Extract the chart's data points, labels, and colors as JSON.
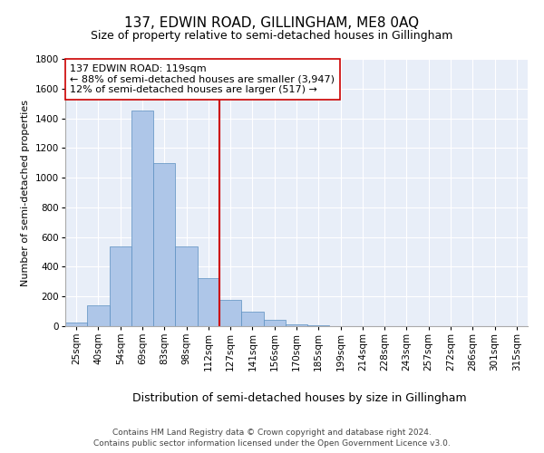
{
  "title": "137, EDWIN ROAD, GILLINGHAM, ME8 0AQ",
  "subtitle": "Size of property relative to semi-detached houses in Gillingham",
  "xlabel": "Distribution of semi-detached houses by size in Gillingham",
  "ylabel": "Number of semi-detached properties",
  "categories": [
    "25sqm",
    "40sqm",
    "54sqm",
    "69sqm",
    "83sqm",
    "98sqm",
    "112sqm",
    "127sqm",
    "141sqm",
    "156sqm",
    "170sqm",
    "185sqm",
    "199sqm",
    "214sqm",
    "228sqm",
    "243sqm",
    "257sqm",
    "272sqm",
    "286sqm",
    "301sqm",
    "315sqm"
  ],
  "values": [
    25,
    140,
    540,
    1450,
    1100,
    540,
    325,
    175,
    100,
    45,
    10,
    5,
    2,
    1,
    0,
    0,
    0,
    0,
    0,
    0,
    0
  ],
  "bar_color": "#aec6e8",
  "bar_edge_color": "#5a8fc0",
  "vline_index": 7,
  "vline_color": "#cc0000",
  "annotation_text": "137 EDWIN ROAD: 119sqm\n← 88% of semi-detached houses are smaller (3,947)\n12% of semi-detached houses are larger (517) →",
  "annotation_box_color": "#ffffff",
  "annotation_box_edge": "#cc0000",
  "ylim": [
    0,
    1800
  ],
  "yticks": [
    0,
    200,
    400,
    600,
    800,
    1000,
    1200,
    1400,
    1600,
    1800
  ],
  "background_color": "#e8eef8",
  "footer1": "Contains HM Land Registry data © Crown copyright and database right 2024.",
  "footer2": "Contains public sector information licensed under the Open Government Licence v3.0.",
  "title_fontsize": 11,
  "subtitle_fontsize": 9,
  "xlabel_fontsize": 9,
  "ylabel_fontsize": 8,
  "tick_fontsize": 7.5,
  "annotation_fontsize": 8,
  "footer_fontsize": 6.5
}
